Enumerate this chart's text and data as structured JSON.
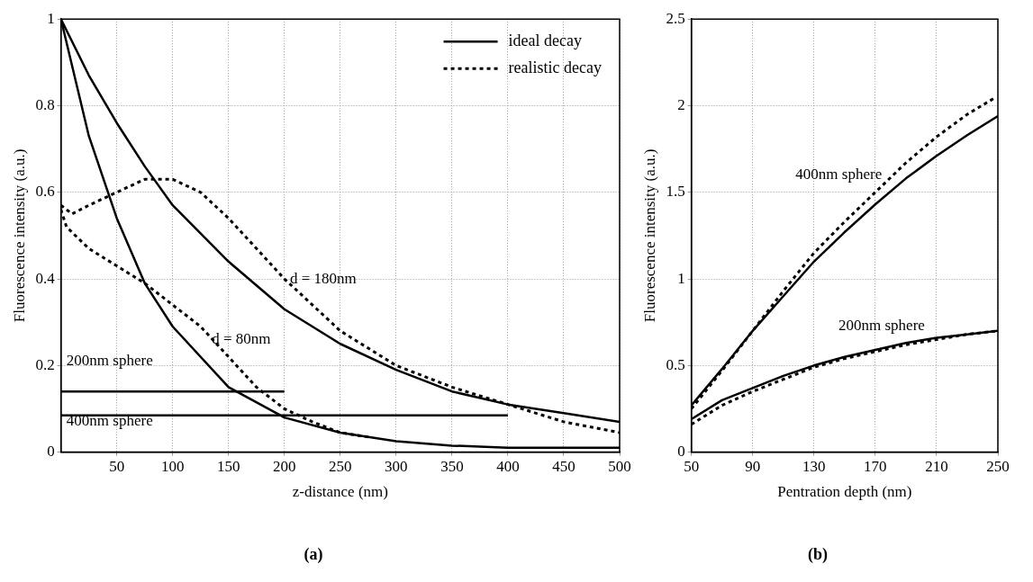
{
  "chart_data": [
    {
      "type": "line",
      "title": "(a)",
      "xlabel": "z-distance (nm)",
      "ylabel": "Fluorescence intensity (a.u.)",
      "xlim": [
        0,
        500
      ],
      "xticks": [
        50,
        100,
        150,
        200,
        250,
        300,
        350,
        400,
        450,
        500
      ],
      "ylim": [
        0,
        1
      ],
      "yticks": [
        0,
        0.2,
        0.4,
        0.6,
        0.8,
        1
      ],
      "grid": true,
      "legend": "top right",
      "series": [
        {
          "name": "ideal decay",
          "color": "#000000",
          "line_style": "solid",
          "x": [
            0,
            25,
            50,
            75,
            100,
            150,
            200,
            250,
            300,
            350,
            400,
            450,
            500
          ],
          "values": [
            1,
            0.73,
            0.54,
            0.39,
            0.29,
            0.15,
            0.08,
            0.045,
            0.025,
            0.015,
            0.01,
            0.01,
            0.01
          ]
        },
        {
          "color": "#000000",
          "line_style": "solid",
          "x": [
            0,
            25,
            50,
            75,
            100,
            150,
            200,
            250,
            300,
            350,
            400,
            450,
            500
          ],
          "values": [
            1,
            0.87,
            0.76,
            0.66,
            0.57,
            0.44,
            0.33,
            0.25,
            0.19,
            0.14,
            0.11,
            0.09,
            0.07
          ]
        },
        {
          "name": "realistic decay",
          "color": "#000000",
          "line_style": "dotted",
          "x": [
            0,
            5,
            25,
            50,
            75,
            100,
            125,
            150,
            175,
            200,
            225,
            250,
            275
          ],
          "values": [
            0.56,
            0.52,
            0.47,
            0.43,
            0.39,
            0.34,
            0.29,
            0.22,
            0.15,
            0.1,
            0.07,
            0.045,
            0.035
          ]
        },
        {
          "color": "#000000",
          "line_style": "dotted",
          "x": [
            0,
            10,
            25,
            50,
            75,
            100,
            125,
            150,
            175,
            200,
            225,
            250,
            275,
            300,
            350,
            400,
            450,
            500
          ],
          "values": [
            0.57,
            0.55,
            0.57,
            0.6,
            0.63,
            0.63,
            0.6,
            0.54,
            0.47,
            0.4,
            0.34,
            0.28,
            0.24,
            0.2,
            0.15,
            0.11,
            0.07,
            0.045
          ]
        },
        {
          "color": "#000000",
          "x": [
            0,
            200
          ],
          "values": [
            0.14,
            0.14
          ]
        },
        {
          "color": "#000000",
          "x": [
            0,
            400
          ],
          "values": [
            0.085,
            0.085
          ]
        }
      ],
      "annotations": [
        {
          "text": "d = 180nm",
          "x": 205,
          "y": 0.4
        },
        "d = 80nm",
        "200nm sphere",
        "400nm sphere"
      ]
    },
    {
      "type": "line",
      "title": "(b)",
      "xlabel": "Pentration depth (nm)",
      "ylabel": "Fluorescence intensity (a.u.)",
      "xlim": [
        50,
        250
      ],
      "xticks": [
        50,
        90,
        130,
        170,
        210,
        250
      ],
      "ylim": [
        0,
        2.5
      ],
      "yticks": [
        0,
        0.5,
        1,
        1.5,
        2,
        2.5
      ],
      "grid": true,
      "series": [
        {
          "color": "#000000",
          "line_style": "solid",
          "x": [
            50,
            70,
            90,
            110,
            130,
            150,
            170,
            190,
            210,
            230,
            250
          ],
          "values": [
            0.27,
            0.48,
            0.7,
            0.9,
            1.1,
            1.27,
            1.43,
            1.58,
            1.71,
            1.83,
            1.94
          ]
        },
        {
          "color": "#000000",
          "line_style": "dotted",
          "x": [
            50,
            70,
            90,
            110,
            130,
            150,
            170,
            190,
            210,
            230,
            247
          ],
          "values": [
            0.25,
            0.47,
            0.7,
            0.93,
            1.15,
            1.33,
            1.5,
            1.67,
            1.82,
            1.95,
            2.04
          ]
        },
        {
          "color": "#000000",
          "line_style": "solid",
          "x": [
            50,
            70,
            90,
            110,
            130,
            150,
            170,
            190,
            210,
            230,
            250
          ],
          "values": [
            0.19,
            0.3,
            0.37,
            0.44,
            0.5,
            0.55,
            0.59,
            0.63,
            0.66,
            0.68,
            0.7
          ]
        },
        {
          "color": "#000000",
          "line_style": "dotted",
          "x": [
            50,
            70,
            90,
            110,
            130,
            150,
            170,
            190,
            210,
            230,
            250
          ],
          "values": [
            0.16,
            0.27,
            0.35,
            0.42,
            0.49,
            0.54,
            0.58,
            0.62,
            0.65,
            0.68,
            0.7
          ]
        }
      ],
      "annotations": [
        "400nm sphere",
        "200nm sphere"
      ]
    }
  ]
}
